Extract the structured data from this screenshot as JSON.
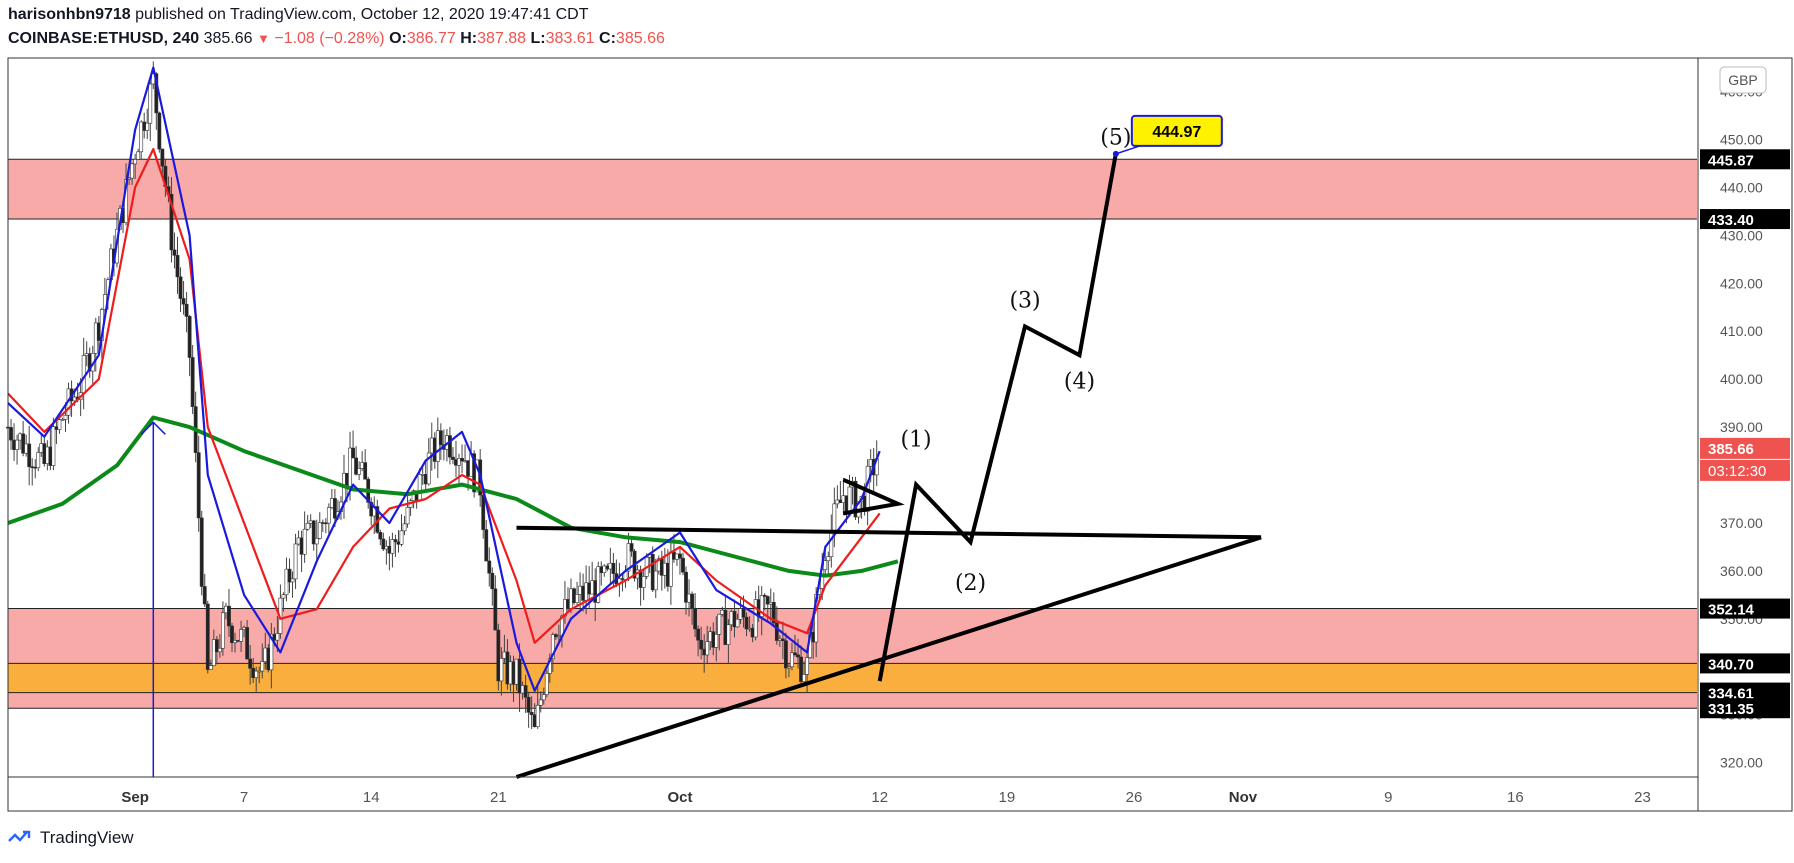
{
  "header": {
    "author": "harisonhbn9718",
    "published": "published on TradingView.com, October 12, 2020 19:47:41 CDT",
    "symbol": "COINBASE:ETHUSD, 240",
    "last": "385.66",
    "change": "−1.08 (−0.28%)",
    "o_label": "O:",
    "o": "386.77",
    "h_label": "H:",
    "h": "387.88",
    "l_label": "L:",
    "l": "383.61",
    "c_label": "C:",
    "c": "385.66"
  },
  "currency": "GBP",
  "brand": "TradingView",
  "chart_data": {
    "type": "line",
    "x_axis": "date",
    "x_range": [
      "2020-08-25",
      "2020-11-26"
    ],
    "y_range": [
      317,
      467
    ],
    "y_ticks": [
      320,
      330,
      340,
      350,
      360,
      370,
      380,
      390,
      400,
      410,
      420,
      430,
      440,
      450,
      460
    ],
    "x_ticks": [
      {
        "date": "2020-09-01",
        "label": "Sep",
        "bold": true
      },
      {
        "date": "2020-09-07",
        "label": "7"
      },
      {
        "date": "2020-09-14",
        "label": "14"
      },
      {
        "date": "2020-09-21",
        "label": "21"
      },
      {
        "date": "2020-10-01",
        "label": "Oct",
        "bold": true
      },
      {
        "date": "2020-10-12",
        "label": "12"
      },
      {
        "date": "2020-10-19",
        "label": "19"
      },
      {
        "date": "2020-10-26",
        "label": "26"
      },
      {
        "date": "2020-11-01",
        "label": "Nov",
        "bold": true
      },
      {
        "date": "2020-11-09",
        "label": "9"
      },
      {
        "date": "2020-11-16",
        "label": "16"
      },
      {
        "date": "2020-11-23",
        "label": "23"
      }
    ],
    "price_levels": [
      {
        "value": 445.87,
        "label": "445.87"
      },
      {
        "value": 433.4,
        "label": "433.40"
      },
      {
        "value": 352.14,
        "label": "352.14"
      },
      {
        "value": 340.7,
        "label": "340.70"
      },
      {
        "value": 334.61,
        "label": "334.61"
      },
      {
        "value": 331.35,
        "label": "331.35"
      }
    ],
    "last_price": {
      "value": 385.66,
      "label": "385.66",
      "countdown": "03:12:30",
      "color": "#ef5350"
    },
    "zones": [
      {
        "from": 433.4,
        "to": 445.87,
        "color": "#f8aaa8"
      },
      {
        "from": 331.35,
        "to": 352.14,
        "color": "#f8aaa8"
      },
      {
        "from": 334.61,
        "to": 340.7,
        "color": "#f9ae3e"
      }
    ],
    "series": [
      {
        "color": "#0b8a1a",
        "points": [
          [
            "2020-08-25",
            370
          ],
          [
            "2020-08-28",
            374
          ],
          [
            "2020-08-31",
            382
          ],
          [
            "2020-09-02",
            392
          ],
          [
            "2020-09-04",
            390
          ],
          [
            "2020-09-07",
            385
          ],
          [
            "2020-09-10",
            381
          ],
          [
            "2020-09-13",
            377
          ],
          [
            "2020-09-16",
            376
          ],
          [
            "2020-09-19",
            378
          ],
          [
            "2020-09-22",
            375
          ],
          [
            "2020-09-25",
            369
          ],
          [
            "2020-09-28",
            367
          ],
          [
            "2020-10-01",
            366
          ],
          [
            "2020-10-04",
            363
          ],
          [
            "2020-10-07",
            360
          ],
          [
            "2020-10-09",
            359
          ],
          [
            "2020-10-11",
            360
          ],
          [
            "2020-10-13",
            362
          ]
        ]
      },
      {
        "color": "#ef1c1c",
        "points": [
          [
            "2020-08-25",
            397
          ],
          [
            "2020-08-27",
            389
          ],
          [
            "2020-08-30",
            400
          ],
          [
            "2020-09-01",
            440
          ],
          [
            "2020-09-02",
            448
          ],
          [
            "2020-09-04",
            425
          ],
          [
            "2020-09-05",
            390
          ],
          [
            "2020-09-07",
            370
          ],
          [
            "2020-09-09",
            350
          ],
          [
            "2020-09-11",
            352
          ],
          [
            "2020-09-13",
            365
          ],
          [
            "2020-09-15",
            373
          ],
          [
            "2020-09-17",
            375
          ],
          [
            "2020-09-19",
            380
          ],
          [
            "2020-09-20",
            378
          ],
          [
            "2020-09-22",
            358
          ],
          [
            "2020-09-23",
            345
          ],
          [
            "2020-09-25",
            352
          ],
          [
            "2020-09-28",
            358
          ],
          [
            "2020-10-01",
            365
          ],
          [
            "2020-10-03",
            358
          ],
          [
            "2020-10-06",
            350
          ],
          [
            "2020-10-08",
            347
          ],
          [
            "2020-10-09",
            357
          ],
          [
            "2020-10-11",
            367
          ],
          [
            "2020-10-12",
            372
          ]
        ]
      },
      {
        "color": "#1a1adc",
        "points": [
          [
            "2020-08-25",
            395
          ],
          [
            "2020-08-27",
            388
          ],
          [
            "2020-08-30",
            405
          ],
          [
            "2020-09-01",
            452
          ],
          [
            "2020-09-02",
            465
          ],
          [
            "2020-09-04",
            430
          ],
          [
            "2020-09-05",
            380
          ],
          [
            "2020-09-07",
            355
          ],
          [
            "2020-09-09",
            343
          ],
          [
            "2020-09-11",
            362
          ],
          [
            "2020-09-13",
            378
          ],
          [
            "2020-09-15",
            370
          ],
          [
            "2020-09-17",
            383
          ],
          [
            "2020-09-19",
            389
          ],
          [
            "2020-09-20",
            380
          ],
          [
            "2020-09-22",
            345
          ],
          [
            "2020-09-23",
            335
          ],
          [
            "2020-09-25",
            350
          ],
          [
            "2020-09-28",
            360
          ],
          [
            "2020-10-01",
            368
          ],
          [
            "2020-10-03",
            356
          ],
          [
            "2020-10-06",
            349
          ],
          [
            "2020-10-08",
            343
          ],
          [
            "2020-10-09",
            365
          ],
          [
            "2020-10-11",
            375
          ],
          [
            "2020-10-12",
            385
          ]
        ]
      }
    ],
    "candle_closes": [
      [
        "2020-08-25",
        390
      ],
      [
        "2020-08-26",
        386
      ],
      [
        "2020-08-27",
        382
      ],
      [
        "2020-08-28",
        392
      ],
      [
        "2020-08-29",
        399
      ],
      [
        "2020-08-30",
        412
      ],
      [
        "2020-08-31",
        430
      ],
      [
        "2020-09-01",
        448
      ],
      [
        "2020-09-02",
        462
      ],
      [
        "2020-09-03",
        430
      ],
      [
        "2020-09-04",
        405
      ],
      [
        "2020-09-05",
        338
      ],
      [
        "2020-09-06",
        350
      ],
      [
        "2020-09-07",
        345
      ],
      [
        "2020-09-08",
        338
      ],
      [
        "2020-09-09",
        352
      ],
      [
        "2020-09-10",
        366
      ],
      [
        "2020-09-11",
        368
      ],
      [
        "2020-09-12",
        375
      ],
      [
        "2020-09-13",
        383
      ],
      [
        "2020-09-14",
        375
      ],
      [
        "2020-09-15",
        364
      ],
      [
        "2020-09-16",
        371
      ],
      [
        "2020-09-17",
        382
      ],
      [
        "2020-09-18",
        388
      ],
      [
        "2020-09-19",
        385
      ],
      [
        "2020-09-20",
        378
      ],
      [
        "2020-09-21",
        340
      ],
      [
        "2020-09-22",
        338
      ],
      [
        "2020-09-23",
        326
      ],
      [
        "2020-09-24",
        348
      ],
      [
        "2020-09-25",
        353
      ],
      [
        "2020-09-26",
        356
      ],
      [
        "2020-09-27",
        358
      ],
      [
        "2020-09-28",
        363
      ],
      [
        "2020-09-29",
        360
      ],
      [
        "2020-09-30",
        359
      ],
      [
        "2020-10-01",
        362
      ],
      [
        "2020-10-02",
        345
      ],
      [
        "2020-10-03",
        347
      ],
      [
        "2020-10-04",
        350
      ],
      [
        "2020-10-05",
        350
      ],
      [
        "2020-10-06",
        352
      ],
      [
        "2020-10-07",
        342
      ],
      [
        "2020-10-08",
        340
      ],
      [
        "2020-10-09",
        365
      ],
      [
        "2020-10-10",
        376
      ],
      [
        "2020-10-11",
        374
      ],
      [
        "2020-10-12",
        386
      ]
    ],
    "annotations": [
      {
        "type": "trendline",
        "points": [
          [
            "2020-09-22",
            317
          ],
          [
            "2020-11-02",
            367
          ]
        ]
      },
      {
        "type": "trendline",
        "points": [
          [
            "2020-09-22",
            369
          ],
          [
            "2020-11-02",
            367
          ]
        ]
      },
      {
        "type": "trendline",
        "points": [
          [
            "2020-10-10",
            379
          ],
          [
            "2020-10-13",
            374
          ],
          [
            "2020-10-10",
            372
          ]
        ]
      },
      {
        "type": "arrow",
        "points": [
          [
            "2020-09-02",
            317
          ],
          [
            "2020-09-02",
            391
          ]
        ],
        "color": "#1a1adc"
      },
      {
        "type": "projection",
        "points": [
          [
            "2020-10-12",
            337
          ],
          [
            "2020-10-14",
            378
          ],
          [
            "2020-10-17",
            366
          ],
          [
            "2020-10-20",
            411
          ],
          [
            "2020-10-23",
            405
          ],
          [
            "2020-10-25",
            447
          ]
        ]
      }
    ],
    "wave_labels": [
      {
        "label": "(1)",
        "x": "2020-10-14",
        "y": 386
      },
      {
        "label": "(2)",
        "x": "2020-10-17",
        "y": 356
      },
      {
        "label": "(3)",
        "x": "2020-10-20",
        "y": 415
      },
      {
        "label": "(4)",
        "x": "2020-10-23",
        "y": 398
      },
      {
        "label": "(5)",
        "x": "2020-10-25",
        "y": 449
      }
    ],
    "target": {
      "label": "444.97",
      "x": "2020-10-25",
      "y": 452
    }
  }
}
